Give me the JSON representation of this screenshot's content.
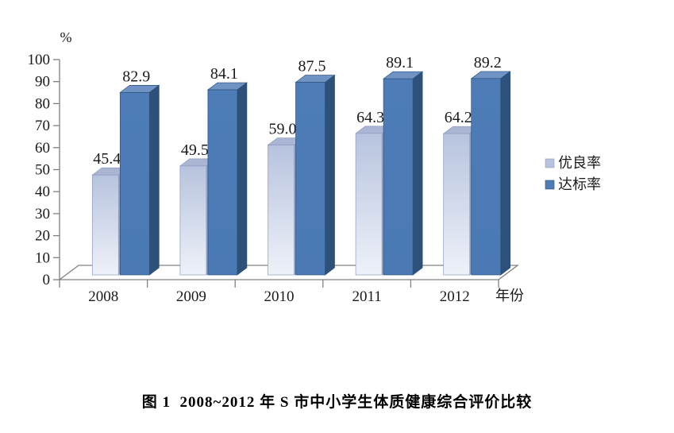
{
  "caption": "图 1  2008~2012 年 S 市中小学生体质健康综合评价比较",
  "chart_data": {
    "type": "bar",
    "style": "3d",
    "title": "图 1  2008~2012 年 S 市中小学生体质健康综合评价比较",
    "categories": [
      "2008",
      "2009",
      "2010",
      "2011",
      "2012"
    ],
    "series": [
      {
        "name": "优良率",
        "slug": "excellent-rate",
        "values": [
          45.4,
          49.5,
          59.0,
          64.3,
          64.2
        ]
      },
      {
        "name": "达标率",
        "slug": "standard-rate",
        "values": [
          82.9,
          84.1,
          87.5,
          89.1,
          89.2
        ]
      }
    ],
    "xlabel": "年份",
    "ylabel": "%",
    "ylim": [
      0,
      100
    ],
    "ytick_step": 10,
    "grid": false,
    "data_labels": true,
    "data_label_decimals": 1,
    "legend_position": "right"
  },
  "colors": {
    "axis": "#808080",
    "label_text": "#1a1a1a",
    "tick_text": "#1a1a1a",
    "series_styles": [
      {
        "front_top": "#b7c3de",
        "front_bottom": "#eef1f8",
        "top": "#a9b5d2",
        "side": "#93a5c8",
        "stroke": "#8c9cc2"
      },
      {
        "front_top": "#4d7cb6",
        "front_bottom": "#4a79b4",
        "top": "#7093c6",
        "side": "#2d5179",
        "stroke": "#2d5179"
      }
    ]
  }
}
